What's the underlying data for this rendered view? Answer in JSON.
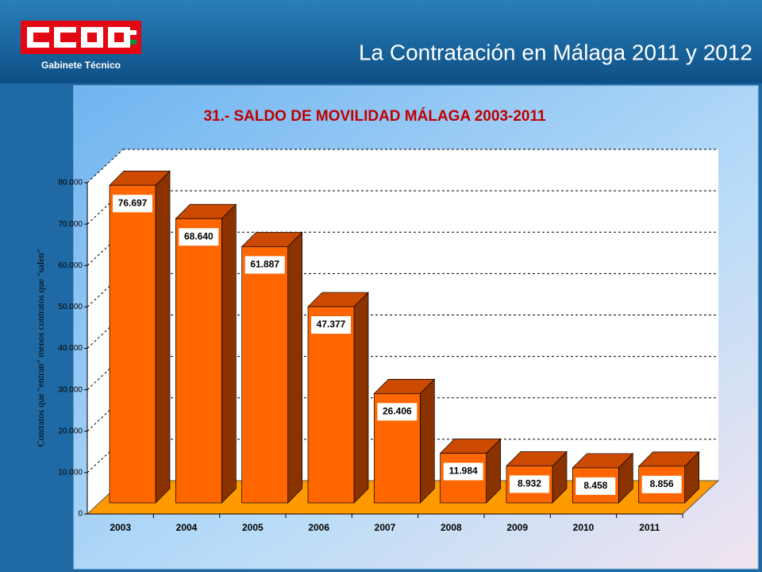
{
  "header": {
    "organization": "Gabinete Técnico",
    "title": "La Contratación en Málaga 2011 y 2012"
  },
  "chart_data": {
    "type": "bar3d",
    "title": "31.- SALDO DE MOVILIDAD MÁLAGA 2003-2011",
    "y_label": "Contratos que \"entran\" menos contratos que \"salen\"",
    "categories": [
      "2003",
      "2004",
      "2005",
      "2006",
      "2007",
      "2008",
      "2009",
      "2010",
      "2011"
    ],
    "values": [
      76697,
      68640,
      61887,
      47377,
      26406,
      11984,
      8932,
      8458,
      8856
    ],
    "value_labels": [
      "76.697",
      "68.640",
      "61.887",
      "47.377",
      "26.406",
      "11.984",
      "8.932",
      "8.458",
      "8.856"
    ],
    "color": "#ff6600",
    "ylim": [
      0,
      80000
    ],
    "yticks": [
      0,
      {
        "value": 10000,
        "label": "10.000"
      },
      {
        "value": 20000,
        "label": "20.000"
      },
      {
        "value": 30000,
        "label": "30.000"
      },
      {
        "value": 40000,
        "label": "40.000"
      },
      {
        "value": 50000,
        "label": "50.000"
      },
      {
        "value": 60000,
        "label": "60.000"
      },
      {
        "value": 70000,
        "label": "70.000"
      },
      {
        "value": 80000,
        "label": "80.000"
      }
    ],
    "grid": true
  }
}
